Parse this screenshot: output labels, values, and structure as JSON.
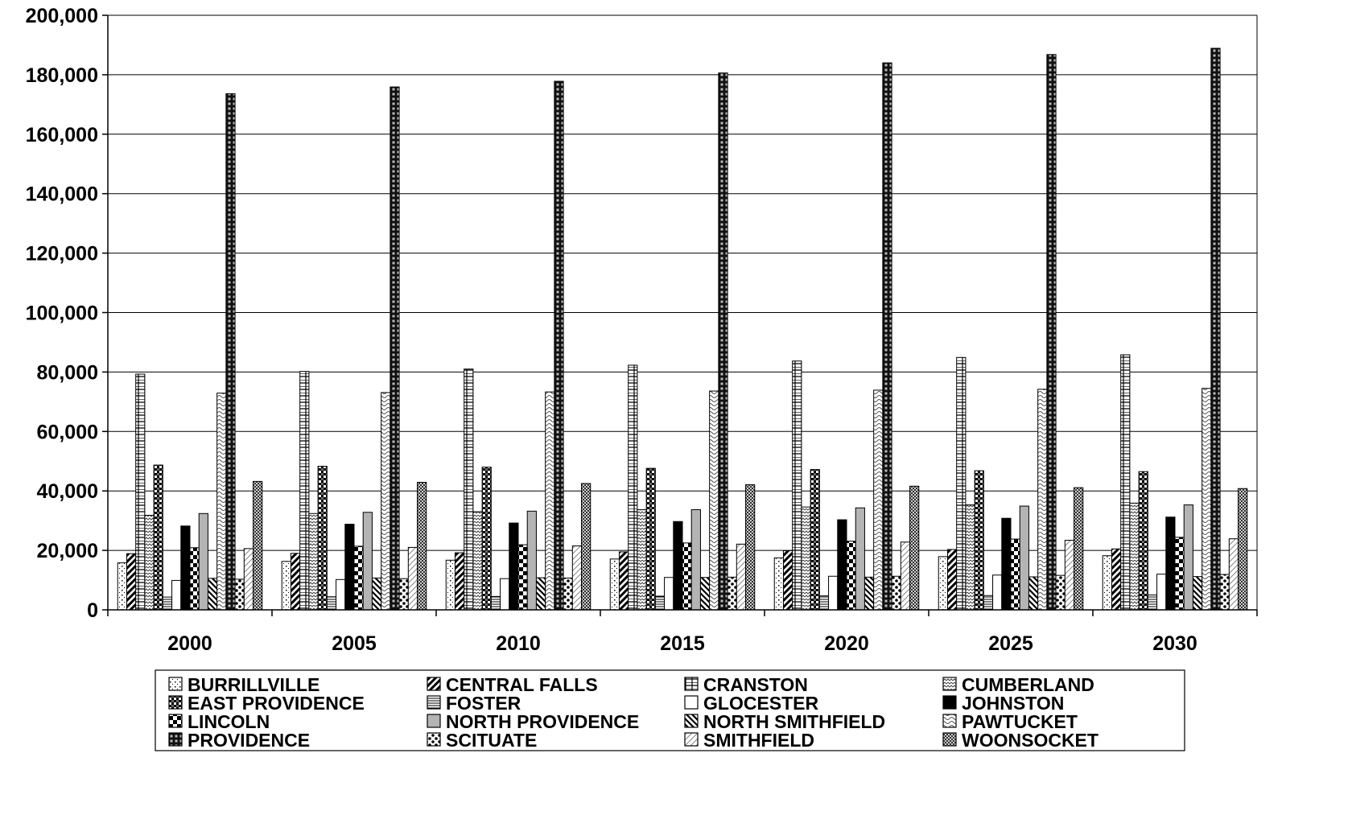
{
  "chart_data": {
    "type": "bar",
    "title": "",
    "xlabel": "",
    "ylabel": "",
    "ylim": [
      0,
      200000
    ],
    "ytick_values": [
      0,
      20000,
      40000,
      60000,
      80000,
      100000,
      120000,
      140000,
      160000,
      180000,
      200000
    ],
    "ytick_labels": [
      "0",
      "20,000",
      "40,000",
      "60,000",
      "80,000",
      "100,000",
      "120,000",
      "140,000",
      "160,000",
      "180,000",
      "200,000"
    ],
    "grid": "horizontal",
    "legend_placement": "bottom",
    "categories": [
      "2000",
      "2005",
      "2010",
      "2015",
      "2020",
      "2025",
      "2030"
    ],
    "series": [
      {
        "name": "BURRILLVILLE",
        "pattern": "dots-open",
        "values": [
          15800,
          16300,
          16700,
          17100,
          17500,
          17900,
          18200
        ]
      },
      {
        "name": "CENTRAL FALLS",
        "pattern": "diag-thick",
        "values": [
          18900,
          19000,
          19200,
          19500,
          19900,
          20300,
          20500
        ]
      },
      {
        "name": "CRANSTON",
        "pattern": "grid-wide",
        "values": [
          79300,
          80200,
          81000,
          82300,
          83700,
          84900,
          85800
        ]
      },
      {
        "name": "CUMBERLAND",
        "pattern": "zigzag",
        "values": [
          31800,
          32400,
          33000,
          33700,
          34600,
          35300,
          35900
        ]
      },
      {
        "name": "EAST PROVIDENCE",
        "pattern": "checker-dark",
        "values": [
          48700,
          48300,
          48000,
          47600,
          47200,
          46800,
          46500
        ]
      },
      {
        "name": "FOSTER",
        "pattern": "hlines",
        "values": [
          4300,
          4400,
          4500,
          4600,
          4700,
          4800,
          5000
        ]
      },
      {
        "name": "GLOCESTER",
        "pattern": "plain-white",
        "values": [
          9900,
          10200,
          10500,
          10900,
          11300,
          11700,
          12000
        ]
      },
      {
        "name": "JOHNSTON",
        "pattern": "solid-black",
        "values": [
          28200,
          28800,
          29200,
          29700,
          30300,
          30800,
          31200
        ]
      },
      {
        "name": "LINCOLN",
        "pattern": "half-black",
        "values": [
          20900,
          21400,
          21900,
          22500,
          23100,
          23800,
          24400
        ]
      },
      {
        "name": "NORTH PROVIDENCE",
        "pattern": "solid-gray",
        "values": [
          32400,
          32800,
          33200,
          33700,
          34300,
          34900,
          35300
        ]
      },
      {
        "name": "NORTH SMITHFIELD",
        "pattern": "diag-back",
        "values": [
          10600,
          10700,
          10800,
          10900,
          11000,
          11100,
          11200
        ]
      },
      {
        "name": "PAWTUCKET",
        "pattern": "wave",
        "values": [
          72900,
          73100,
          73300,
          73600,
          73900,
          74200,
          74500
        ]
      },
      {
        "name": "PROVIDENCE",
        "pattern": "dark-mesh",
        "values": [
          173600,
          175900,
          177800,
          180600,
          184000,
          186800,
          188900
        ]
      },
      {
        "name": "SCITUATE",
        "pattern": "dots-black",
        "values": [
          10300,
          10500,
          10700,
          11000,
          11300,
          11600,
          11900
        ]
      },
      {
        "name": "SMITHFIELD",
        "pattern": "diag-light",
        "values": [
          20600,
          21000,
          21500,
          22100,
          22800,
          23400,
          23900
        ]
      },
      {
        "name": "WOONSOCKET",
        "pattern": "dense-check",
        "values": [
          43200,
          42900,
          42500,
          42100,
          41600,
          41100,
          40800
        ]
      }
    ]
  }
}
